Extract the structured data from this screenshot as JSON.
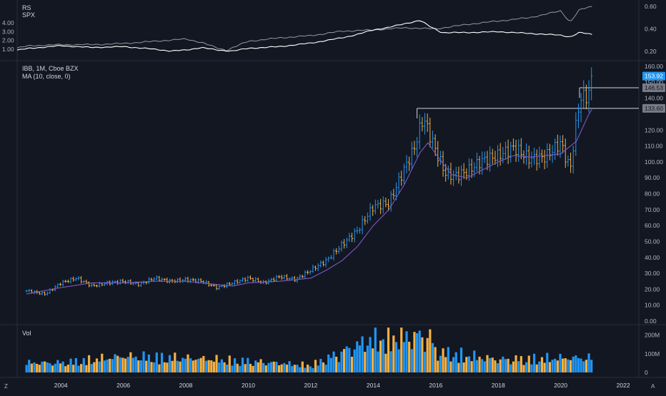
{
  "rs_pane": {
    "label_rs": "RS",
    "label_spx": "SPX",
    "left_ticks": [
      "4.00",
      "3.00",
      "2.00",
      "1.00"
    ],
    "right_ticks": [
      "0.60",
      "0.40",
      "0.20"
    ]
  },
  "price_pane": {
    "title": "IBB, 1M, Cboe BZX",
    "ma_label": "MA (10, close, 0)",
    "price_ticks": [
      "160.00",
      "150.00",
      "140.00",
      "130.00",
      "120.00",
      "110.00",
      "100.00",
      "90.00",
      "80.00",
      "70.00",
      "60.00",
      "50.00",
      "40.00",
      "30.00",
      "20.00",
      "10.00",
      "0.00"
    ],
    "tags": [
      {
        "text": "153.92",
        "value": 153.92,
        "bg": "#2196f3",
        "fg": "#ffffff"
      },
      {
        "text": "146.53",
        "value": 146.53,
        "bg": "#787b86",
        "fg": "#131722"
      },
      {
        "text": "133.60",
        "value": 133.6,
        "bg": "#787b86",
        "fg": "#131722"
      }
    ]
  },
  "volume_pane": {
    "label": "Vol",
    "ticks": [
      "200M",
      "100M",
      "0"
    ]
  },
  "time_axis": {
    "labels": [
      "2004",
      "2006",
      "2008",
      "2010",
      "2012",
      "2014",
      "2016",
      "2018",
      "2020",
      "2022"
    ]
  },
  "corner": {
    "left_icon": "Z",
    "right_icon": "A"
  },
  "colors": {
    "background": "#131722",
    "up": "#2196f3",
    "down": "#f5b042",
    "ma": "#7e57c2",
    "rs": "#ffffff",
    "spx": "#9598a1",
    "level_line": "#d1d4dc"
  },
  "chart_data": {
    "type": "line",
    "ticker": "IBB",
    "interval": "1M",
    "exchange": "Cboe BZX",
    "x_range": [
      2002.6,
      2022.5
    ],
    "price_ylim": [
      0,
      160
    ],
    "volume_ylim": [
      0,
      250000000
    ],
    "series": [
      {
        "name": "IBB",
        "x": [
          2002.9,
          2003.5,
          2004.0,
          2004.5,
          2005.0,
          2005.5,
          2006.0,
          2006.5,
          2007.0,
          2007.5,
          2008.0,
          2008.5,
          2009.0,
          2009.5,
          2010.0,
          2010.5,
          2011.0,
          2011.5,
          2012.0,
          2012.5,
          2013.0,
          2013.5,
          2014.0,
          2014.5,
          2015.0,
          2015.3,
          2015.6,
          2016.0,
          2016.3,
          2016.6,
          2017.0,
          2017.5,
          2018.0,
          2018.5,
          2019.0,
          2019.5,
          2020.0,
          2020.3,
          2020.6,
          2020.9,
          2021.0
        ],
        "values": [
          19,
          17,
          24,
          27,
          22,
          24,
          25,
          23,
          27,
          25,
          26,
          25,
          21,
          24,
          27,
          24,
          28,
          26,
          32,
          38,
          48,
          57,
          72,
          74,
          96,
          108,
          128,
          107,
          93,
          91,
          94,
          101,
          104,
          109,
          102,
          103,
          112,
          95,
          139,
          143,
          153.92
        ]
      },
      {
        "name": "MA (10, close, 0)",
        "x": [
          2002.9,
          2004.0,
          2005.0,
          2006.0,
          2007.0,
          2008.0,
          2009.0,
          2009.5,
          2010.0,
          2011.0,
          2012.0,
          2012.5,
          2013.0,
          2013.5,
          2014.0,
          2014.5,
          2015.0,
          2015.5,
          2015.75,
          2016.0,
          2016.5,
          2017.0,
          2017.5,
          2018.0,
          2018.5,
          2019.0,
          2019.5,
          2020.0,
          2020.5,
          2020.9,
          2021.0
        ],
        "values": [
          17,
          21,
          24,
          24,
          25,
          25,
          23,
          22,
          24,
          25,
          27,
          32,
          38,
          47,
          60,
          70,
          86,
          106,
          112,
          105,
          92,
          90,
          95,
          100,
          104,
          103,
          104,
          105,
          113,
          130,
          133
        ]
      },
      {
        "name": "RS",
        "axis": "left",
        "x": [
          2002.6,
          2003.0,
          2004.0,
          2005.0,
          2006.0,
          2007.0,
          2007.5,
          2008.0,
          2008.5,
          2009.0,
          2009.5,
          2010.0,
          2011.0,
          2012.0,
          2012.5,
          2013.0,
          2013.5,
          2014.0,
          2014.5,
          2015.0,
          2015.5,
          2015.8,
          2016.2,
          2017.0,
          2018.0,
          2019.0,
          2020.0,
          2020.3,
          2020.6,
          2021.0
        ],
        "values": [
          0.9,
          1.1,
          1.4,
          1.2,
          1.3,
          1.0,
          0.8,
          0.9,
          1.2,
          0.9,
          0.8,
          1.1,
          1.3,
          1.7,
          2.0,
          2.3,
          2.7,
          3.2,
          3.5,
          3.9,
          4.3,
          3.6,
          2.9,
          2.9,
          3.0,
          2.8,
          2.6,
          2.4,
          2.9,
          2.7
        ]
      },
      {
        "name": "SPX",
        "axis": "right",
        "x": [
          2002.6,
          2003.0,
          2004.0,
          2005.0,
          2006.0,
          2007.0,
          2008.0,
          2008.5,
          2009.0,
          2009.3,
          2010.0,
          2011.0,
          2012.0,
          2013.0,
          2014.0,
          2015.0,
          2016.0,
          2017.0,
          2018.0,
          2019.0,
          2020.0,
          2020.3,
          2020.6,
          2021.0
        ],
        "values": [
          0.23,
          0.25,
          0.26,
          0.26,
          0.27,
          0.29,
          0.31,
          0.28,
          0.23,
          0.21,
          0.29,
          0.32,
          0.34,
          0.38,
          0.39,
          0.41,
          0.4,
          0.44,
          0.47,
          0.5,
          0.56,
          0.46,
          0.57,
          0.6
        ]
      }
    ],
    "volume": {
      "x": [
        2004.0,
        2006.0,
        2008.0,
        2010.0,
        2012.0,
        2014.0,
        2015.8,
        2016.0,
        2018.0,
        2020.0
      ],
      "values": [
        60000000,
        100000000,
        90000000,
        70000000,
        45000000,
        210000000,
        230000000,
        130000000,
        80000000,
        90000000
      ]
    },
    "price_levels": [
      {
        "value": 146.53,
        "from_x": 2020.6
      },
      {
        "value": 133.6,
        "from_x": 2015.4
      }
    ]
  }
}
